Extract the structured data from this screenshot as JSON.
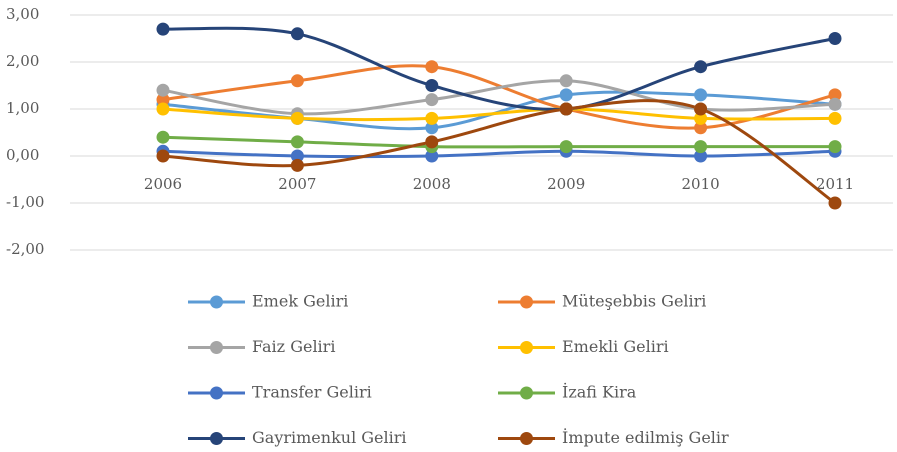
{
  "chart_data": {
    "type": "line",
    "smooth": true,
    "grid": true,
    "legend": "bottom",
    "categories": [
      "2006",
      "2007",
      "2008",
      "2009",
      "2010",
      "2011"
    ],
    "ylim": [
      -2,
      3
    ],
    "yticks": [
      {
        "value": -2,
        "label": "-2,00"
      },
      {
        "value": -1,
        "label": "-1,00"
      },
      {
        "value": 0,
        "label": "0,00"
      },
      {
        "value": 1,
        "label": "1,00"
      },
      {
        "value": 2,
        "label": "2,00"
      },
      {
        "value": 3,
        "label": "3,00"
      }
    ],
    "series": [
      {
        "name": "Emek Geliri",
        "color": "#5b9bd5",
        "values": [
          1.1,
          0.8,
          0.6,
          1.3,
          1.3,
          1.1
        ]
      },
      {
        "name": "Müteşebbis Geliri",
        "color": "#ed7d31",
        "values": [
          1.2,
          1.6,
          1.9,
          1.0,
          0.6,
          1.3
        ]
      },
      {
        "name": "Faiz Geliri",
        "color": "#a5a5a5",
        "values": [
          1.4,
          0.9,
          1.2,
          1.6,
          1.0,
          1.1
        ]
      },
      {
        "name": "Emekli Geliri",
        "color": "#ffc000",
        "values": [
          1.0,
          0.8,
          0.8,
          1.0,
          0.8,
          0.8
        ]
      },
      {
        "name": "Transfer Geliri",
        "color": "#4472c4",
        "values": [
          0.1,
          0.0,
          0.0,
          0.1,
          0.0,
          0.1
        ]
      },
      {
        "name": "İzafi Kira",
        "color": "#70ad47",
        "values": [
          0.4,
          0.3,
          0.2,
          0.2,
          0.2,
          0.2
        ]
      },
      {
        "name": "Gayrimenkul Geliri",
        "color": "#264478",
        "values": [
          2.7,
          2.6,
          1.5,
          1.0,
          1.9,
          2.5
        ]
      },
      {
        "name": "İmpute edilmiş Gelir",
        "color": "#9e480e",
        "values": [
          0.0,
          -0.2,
          0.3,
          1.0,
          1.0,
          -1.0
        ]
      }
    ]
  }
}
